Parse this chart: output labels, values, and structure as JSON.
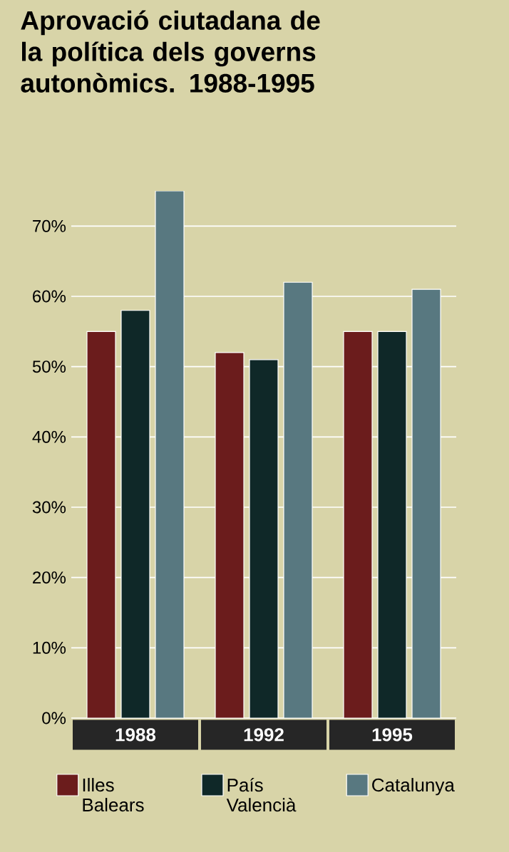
{
  "chart_data": {
    "type": "bar",
    "title": "Aprovació ciutadana de la política dels governs autonòmics. 1988-1995",
    "categories": [
      "1988",
      "1992",
      "1995"
    ],
    "series": [
      {
        "name": "Illes Balears",
        "color": "#6b1c1c",
        "values": [
          55,
          52,
          55
        ]
      },
      {
        "name": "País Valencià",
        "color": "#0f2828",
        "values": [
          58,
          51,
          55
        ]
      },
      {
        "name": "Catalunya",
        "color": "#587880",
        "values": [
          75,
          62,
          61
        ]
      }
    ],
    "ylim": [
      0,
      75
    ],
    "yticks": [
      {
        "value": 0,
        "label": "0%"
      },
      {
        "value": 10,
        "label": "10%"
      },
      {
        "value": 20,
        "label": "20%"
      },
      {
        "value": 30,
        "label": "30%"
      },
      {
        "value": 40,
        "label": "40%"
      },
      {
        "value": 50,
        "label": "50%"
      },
      {
        "value": 60,
        "label": "60%"
      },
      {
        "value": 70,
        "label": "70%"
      }
    ],
    "grid": "y",
    "legend": "bottom"
  }
}
